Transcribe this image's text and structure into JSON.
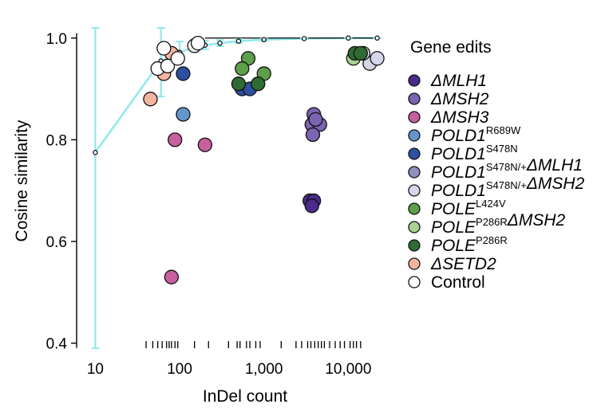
{
  "chart_data": {
    "type": "scatter",
    "title": "",
    "xlabel": "InDel count",
    "ylabel": "Cosine similarity",
    "xscale": "log",
    "xlim": [
      6,
      40000
    ],
    "ylim": [
      0.39,
      1.02
    ],
    "x_ticks": [
      {
        "value": 10,
        "label": "10"
      },
      {
        "value": 100,
        "label": "100"
      },
      {
        "value": 1000,
        "label": "1,000"
      },
      {
        "value": 10000,
        "label": "10,000"
      }
    ],
    "y_ticks": [
      {
        "value": 0.4,
        "label": "0.4"
      },
      {
        "value": 0.6,
        "label": "0.6"
      },
      {
        "value": 0.8,
        "label": "0.8"
      },
      {
        "value": 1.0,
        "label": "1.0"
      }
    ],
    "rug_x": [
      40,
      48,
      55,
      62,
      70,
      75,
      80,
      88,
      95,
      150,
      220,
      380,
      480,
      520,
      620,
      680,
      800,
      900,
      1600,
      2400,
      2800,
      3300,
      3600,
      4000,
      4400,
      4800,
      5200,
      6000,
      7000,
      8000,
      9000,
      10500,
      11500,
      12500,
      14000
    ],
    "downsampling_curve": {
      "color": "#8ee9ee",
      "points": [
        {
          "x": 10,
          "y": 0.775,
          "lo": 0.39,
          "hi": 1.02
        },
        {
          "x": 60,
          "y": 0.955,
          "lo": 0.885,
          "hi": 1.02
        },
        {
          "x": 100,
          "y": 0.972,
          "lo": 0.95,
          "hi": 0.993
        },
        {
          "x": 150,
          "y": 0.982,
          "lo": 0.972,
          "hi": 0.994
        },
        {
          "x": 200,
          "y": 0.986,
          "lo": 0.978,
          "hi": 0.995
        },
        {
          "x": 300,
          "y": 0.99,
          "lo": 0.984,
          "hi": 0.996
        },
        {
          "x": 500,
          "y": 0.994,
          "lo": 0.99,
          "hi": 0.998
        },
        {
          "x": 1000,
          "y": 0.997,
          "lo": 0.994,
          "hi": 0.999
        },
        {
          "x": 3000,
          "y": 0.999,
          "lo": 0.998,
          "hi": 1.0
        },
        {
          "x": 10000,
          "y": 1.0,
          "lo": 0.999,
          "hi": 1.0
        },
        {
          "x": 22000,
          "y": 1.0,
          "lo": 1.0,
          "hi": 1.0
        }
      ]
    },
    "legend_title": "Gene edits",
    "legend_position": "right",
    "series": [
      {
        "name": "ΔMLH1",
        "parts": [
          {
            "t": "ΔMLH1",
            "i": true
          }
        ],
        "color": "#4a2a8c",
        "points": [
          {
            "x": 3500,
            "y": 0.68
          },
          {
            "x": 3900,
            "y": 0.68
          },
          {
            "x": 3700,
            "y": 0.67
          }
        ]
      },
      {
        "name": "ΔMSH2",
        "parts": [
          {
            "t": "ΔMSH2",
            "i": true
          }
        ],
        "color": "#7b64b2",
        "points": [
          {
            "x": 3900,
            "y": 0.85
          },
          {
            "x": 3700,
            "y": 0.83
          },
          {
            "x": 4600,
            "y": 0.83
          },
          {
            "x": 3800,
            "y": 0.81
          },
          {
            "x": 4100,
            "y": 0.84
          }
        ]
      },
      {
        "name": "ΔMSH3",
        "parts": [
          {
            "t": "ΔMSH3",
            "i": true
          }
        ],
        "color": "#c6609f",
        "points": [
          {
            "x": 88,
            "y": 0.8
          },
          {
            "x": 200,
            "y": 0.79
          },
          {
            "x": 80,
            "y": 0.53
          }
        ]
      },
      {
        "name": "POLD1 R689W",
        "parts": [
          {
            "t": "POLD1",
            "i": true
          },
          {
            "t": "R689W",
            "sup": true
          }
        ],
        "color": "#6396cd",
        "points": [
          {
            "x": 110,
            "y": 0.85
          }
        ]
      },
      {
        "name": "POLD1 S478N",
        "parts": [
          {
            "t": "POLD1",
            "i": true
          },
          {
            "t": "S478N",
            "sup": true
          }
        ],
        "color": "#2e50a2",
        "points": [
          {
            "x": 110,
            "y": 0.93
          },
          {
            "x": 550,
            "y": 0.9
          },
          {
            "x": 680,
            "y": 0.9
          }
        ]
      },
      {
        "name": "POLD1 S478N/+ ΔMLH1",
        "parts": [
          {
            "t": "POLD1",
            "i": true
          },
          {
            "t": "S478N/+",
            "sup": true
          },
          {
            "t": "ΔMLH1",
            "i": true
          }
        ],
        "color": "#9090bf",
        "points": []
      },
      {
        "name": "POLD1 S478N/+ ΔMSH2",
        "parts": [
          {
            "t": "POLD1",
            "i": true
          },
          {
            "t": "S478N/+",
            "sup": true
          },
          {
            "t": "ΔMSH2",
            "i": true
          }
        ],
        "color": "#d6d6ea",
        "points": [
          {
            "x": 18000,
            "y": 0.95
          },
          {
            "x": 22000,
            "y": 0.96
          },
          {
            "x": 15000,
            "y": 0.97
          }
        ]
      },
      {
        "name": "POLE L424V",
        "parts": [
          {
            "t": "POLE",
            "i": true
          },
          {
            "t": "L424V",
            "sup": true
          }
        ],
        "color": "#5e9f4a",
        "points": [
          {
            "x": 650,
            "y": 0.96
          },
          {
            "x": 550,
            "y": 0.94
          },
          {
            "x": 1000,
            "y": 0.93
          }
        ]
      },
      {
        "name": "POLE P286R ΔMSH2",
        "parts": [
          {
            "t": "POLE",
            "i": true
          },
          {
            "t": "P286R",
            "sup": true
          },
          {
            "t": "ΔMSH2",
            "i": true
          }
        ],
        "color": "#a8d291",
        "points": [
          {
            "x": 11500,
            "y": 0.96
          }
        ]
      },
      {
        "name": "POLE P286R",
        "parts": [
          {
            "t": "POLE",
            "i": true
          },
          {
            "t": "P286R",
            "sup": true
          }
        ],
        "color": "#2f6b32",
        "points": [
          {
            "x": 500,
            "y": 0.91
          },
          {
            "x": 850,
            "y": 0.91
          },
          {
            "x": 12000,
            "y": 0.97
          },
          {
            "x": 14000,
            "y": 0.97
          }
        ]
      },
      {
        "name": "ΔSETD2",
        "parts": [
          {
            "t": "ΔSETD2",
            "i": true
          }
        ],
        "color": "#f4b4a0",
        "points": [
          {
            "x": 45,
            "y": 0.88
          },
          {
            "x": 65,
            "y": 0.93
          },
          {
            "x": 80,
            "y": 0.97
          }
        ]
      },
      {
        "name": "Control",
        "parts": [
          {
            "t": "Control",
            "i": false
          }
        ],
        "color": "#ffffff",
        "points": [
          {
            "x": 65,
            "y": 0.98
          },
          {
            "x": 55,
            "y": 0.94
          },
          {
            "x": 72,
            "y": 0.945
          },
          {
            "x": 95,
            "y": 0.96
          },
          {
            "x": 150,
            "y": 0.985
          },
          {
            "x": 165,
            "y": 0.99
          }
        ]
      }
    ]
  }
}
